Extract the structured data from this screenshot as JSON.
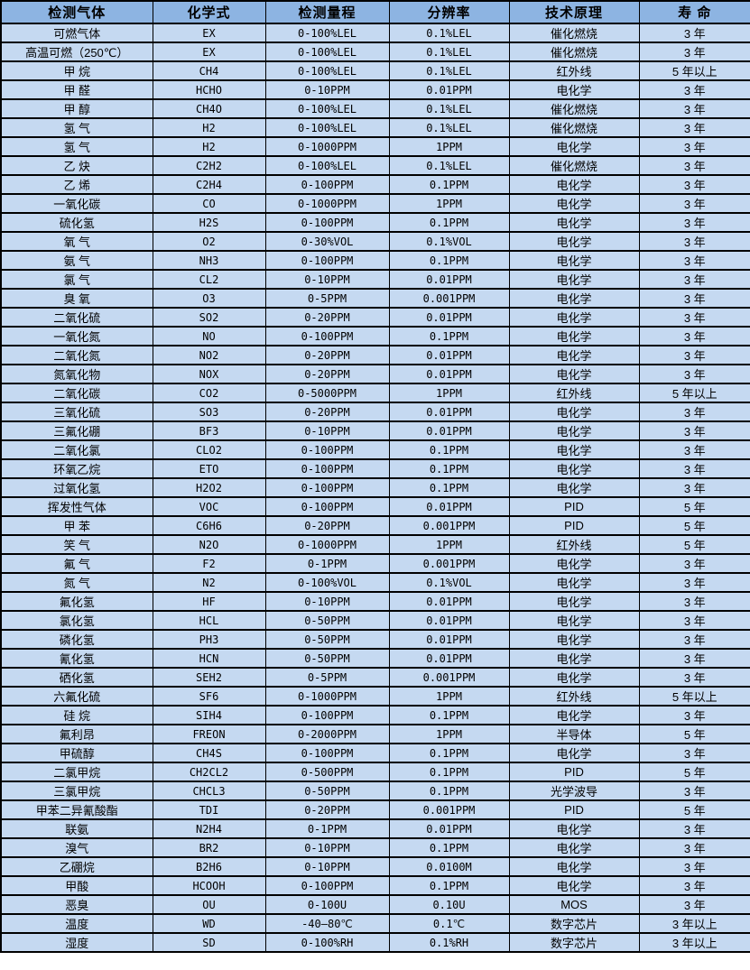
{
  "colors": {
    "header_bg": "#8DB4E2",
    "row_bg": "#C5D9F1",
    "border": "#000000",
    "text": "#000000",
    "page_bg": "#FFFFFF"
  },
  "table": {
    "columns": [
      {
        "key": "gas",
        "label": "检测气体"
      },
      {
        "key": "formula",
        "label": "化学式"
      },
      {
        "key": "range",
        "label": "检测量程"
      },
      {
        "key": "resolution",
        "label": "分辨率"
      },
      {
        "key": "principle",
        "label": "技术原理"
      },
      {
        "key": "lifespan",
        "label": "寿 命"
      }
    ],
    "rows": [
      [
        "可燃气体",
        "EX",
        "0-100%LEL",
        "0.1%LEL",
        "催化燃烧",
        "3 年"
      ],
      [
        "高温可燃（250℃）",
        "EX",
        "0-100%LEL",
        "0.1%LEL",
        "催化燃烧",
        "3 年"
      ],
      [
        "甲 烷",
        "CH4",
        "0-100%LEL",
        "0.1%LEL",
        "红外线",
        "5 年以上"
      ],
      [
        "甲 醛",
        "HCHO",
        "0-10PPM",
        "0.01PPM",
        "电化学",
        "3 年"
      ],
      [
        "甲 醇",
        "CH4O",
        "0-100%LEL",
        "0.1%LEL",
        "催化燃烧",
        "3 年"
      ],
      [
        "氢 气",
        "H2",
        "0-100%LEL",
        "0.1%LEL",
        "催化燃烧",
        "3 年"
      ],
      [
        "氢 气",
        "H2",
        "0-1000PPM",
        "1PPM",
        "电化学",
        "3 年"
      ],
      [
        "乙 炔",
        "C2H2",
        "0-100%LEL",
        "0.1%LEL",
        "催化燃烧",
        "3 年"
      ],
      [
        "乙 烯",
        "C2H4",
        "0-100PPM",
        "0.1PPM",
        "电化学",
        "3 年"
      ],
      [
        "一氧化碳",
        "CO",
        "0-1000PPM",
        "1PPM",
        "电化学",
        "3 年"
      ],
      [
        "硫化氢",
        "H2S",
        "0-100PPM",
        "0.1PPM",
        "电化学",
        "3 年"
      ],
      [
        "氧 气",
        "O2",
        "0-30%VOL",
        "0.1%VOL",
        "电化学",
        "3 年"
      ],
      [
        "氨 气",
        "NH3",
        "0-100PPM",
        "0.1PPM",
        "电化学",
        "3 年"
      ],
      [
        "氯 气",
        "CL2",
        "0-10PPM",
        "0.01PPM",
        "电化学",
        "3 年"
      ],
      [
        "臭 氧",
        "O3",
        "0-5PPM",
        "0.001PPM",
        "电化学",
        "3 年"
      ],
      [
        "二氧化硫",
        "SO2",
        "0-20PPM",
        "0.01PPM",
        "电化学",
        "3 年"
      ],
      [
        "一氧化氮",
        "NO",
        "0-100PPM",
        "0.1PPM",
        "电化学",
        "3 年"
      ],
      [
        "二氧化氮",
        "NO2",
        "0-20PPM",
        "0.01PPM",
        "电化学",
        "3 年"
      ],
      [
        "氮氧化物",
        "NOX",
        "0-20PPM",
        "0.01PPM",
        "电化学",
        "3 年"
      ],
      [
        "二氧化碳",
        "CO2",
        "0-5000PPM",
        "1PPM",
        "红外线",
        "5 年以上"
      ],
      [
        "三氧化硫",
        "SO3",
        "0-20PPM",
        "0.01PPM",
        "电化学",
        "3 年"
      ],
      [
        "三氟化硼",
        "BF3",
        "0-10PPM",
        "0.01PPM",
        "电化学",
        "3 年"
      ],
      [
        "二氧化氯",
        "CLO2",
        "0-100PPM",
        "0.1PPM",
        "电化学",
        "3 年"
      ],
      [
        "环氧乙烷",
        "ETO",
        "0-100PPM",
        "0.1PPM",
        "电化学",
        "3 年"
      ],
      [
        "过氧化氢",
        "H2O2",
        "0-100PPM",
        "0.1PPM",
        "电化学",
        "3 年"
      ],
      [
        "挥发性气体",
        "VOC",
        "0-100PPM",
        "0.01PPM",
        "PID",
        "5 年"
      ],
      [
        "甲 苯",
        "C6H6",
        "0-20PPM",
        "0.001PPM",
        "PID",
        "5 年"
      ],
      [
        "笑 气",
        "N2O",
        "0-1000PPM",
        "1PPM",
        "红外线",
        "5 年"
      ],
      [
        "氟 气",
        "F2",
        "0-1PPM",
        "0.001PPM",
        "电化学",
        "3 年"
      ],
      [
        "氮 气",
        "N2",
        "0-100%VOL",
        "0.1%VOL",
        "电化学",
        "3 年"
      ],
      [
        "氟化氢",
        "HF",
        "0-10PPM",
        "0.01PPM",
        "电化学",
        "3 年"
      ],
      [
        "氯化氢",
        "HCL",
        "0-50PPM",
        "0.01PPM",
        "电化学",
        "3 年"
      ],
      [
        "磷化氢",
        "PH3",
        "0-50PPM",
        "0.01PPM",
        "电化学",
        "3 年"
      ],
      [
        "氰化氢",
        "HCN",
        "0-50PPM",
        "0.01PPM",
        "电化学",
        "3 年"
      ],
      [
        "硒化氢",
        "SEH2",
        "0-5PPM",
        "0.001PPM",
        "电化学",
        "3 年"
      ],
      [
        "六氟化硫",
        "SF6",
        "0-1000PPM",
        "1PPM",
        "红外线",
        "5 年以上"
      ],
      [
        "硅 烷",
        "SIH4",
        "0-100PPM",
        "0.1PPM",
        "电化学",
        "3 年"
      ],
      [
        "氟利昂",
        "FREON",
        "0-2000PPM",
        "1PPM",
        "半导体",
        "5 年"
      ],
      [
        "甲硫醇",
        "CH4S",
        "0-100PPM",
        "0.1PPM",
        "电化学",
        "3 年"
      ],
      [
        "二氯甲烷",
        "CH2CL2",
        "0-500PPM",
        "0.1PPM",
        "PID",
        "5 年"
      ],
      [
        "三氯甲烷",
        "CHCL3",
        "0-50PPM",
        "0.1PPM",
        "光学波导",
        "3 年"
      ],
      [
        "甲苯二异氰酸酯",
        "TDI",
        "0-20PPM",
        "0.001PPM",
        "PID",
        "5 年"
      ],
      [
        "联氨",
        "N2H4",
        "0-1PPM",
        "0.01PPM",
        "电化学",
        "3 年"
      ],
      [
        "溴气",
        "BR2",
        "0-10PPM",
        "0.1PPM",
        "电化学",
        "3 年"
      ],
      [
        "乙硼烷",
        "B2H6",
        "0-10PPM",
        "0.0100M",
        "电化学",
        "3 年"
      ],
      [
        "甲酸",
        "HCOOH",
        "0-100PPM",
        "0.1PPM",
        "电化学",
        "3 年"
      ],
      [
        "恶臭",
        "OU",
        "0-100U",
        "0.10U",
        "MOS",
        "3 年"
      ],
      [
        "温度",
        "WD",
        "-40—80℃",
        "0.1℃",
        "数字芯片",
        "3 年以上"
      ],
      [
        "湿度",
        "SD",
        "0-100%RH",
        "0.1%RH",
        "数字芯片",
        "3 年以上"
      ]
    ]
  }
}
